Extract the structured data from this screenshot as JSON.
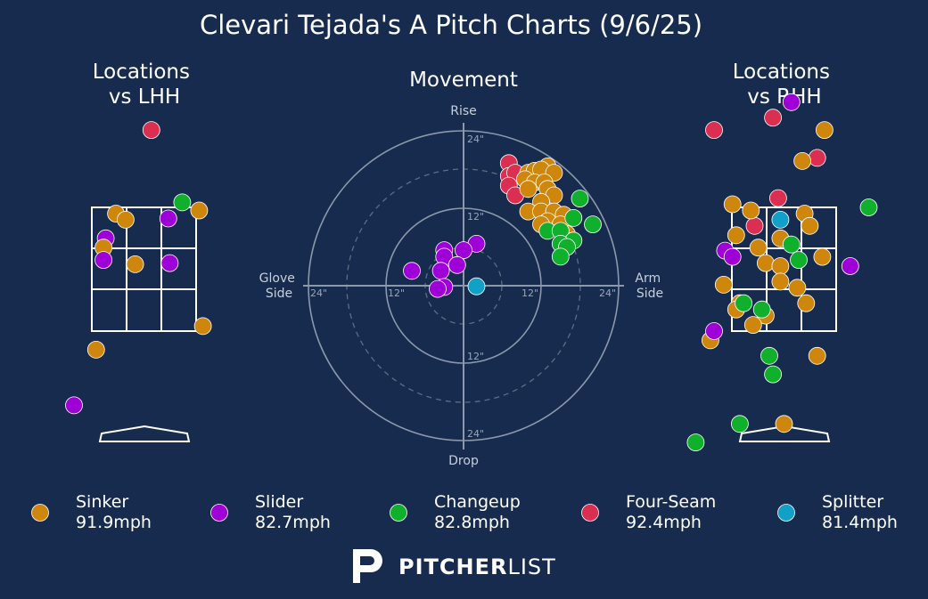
{
  "title": "Clevari Tejada's A Pitch Charts (9/6/25)",
  "brand": {
    "bold": "PITCHER",
    "light": "LIST"
  },
  "colors": {
    "background": "#162b4d",
    "Sinker": "#cf860d",
    "Slider": "#a000d8",
    "Changeup": "#11b02c",
    "Four-Seam": "#db2f51",
    "Splitter": "#11a0c8"
  },
  "legend": [
    {
      "pitch": "Sinker",
      "speed": "91.9mph"
    },
    {
      "pitch": "Slider",
      "speed": "82.7mph"
    },
    {
      "pitch": "Changeup",
      "speed": "82.8mph"
    },
    {
      "pitch": "Four-Seam",
      "speed": "92.4mph"
    },
    {
      "pitch": "Splitter",
      "speed": "81.4mph"
    }
  ],
  "chart_data": [
    {
      "type": "scatter",
      "title": "Locations\nvs LHH",
      "grid": true,
      "points": [
        {
          "pitch": "Four-Seam",
          "x": 0.1,
          "y": 4.75
        },
        {
          "pitch": "Changeup",
          "x": 0.52,
          "y": 3.58
        },
        {
          "pitch": "Sinker",
          "x": 0.75,
          "y": 3.45
        },
        {
          "pitch": "Sinker",
          "x": -0.38,
          "y": 3.4
        },
        {
          "pitch": "Sinker",
          "x": -0.25,
          "y": 3.3
        },
        {
          "pitch": "Slider",
          "x": 0.33,
          "y": 3.32
        },
        {
          "pitch": "Slider",
          "x": -0.52,
          "y": 3.0
        },
        {
          "pitch": "Sinker",
          "x": -0.55,
          "y": 2.85
        },
        {
          "pitch": "Slider",
          "x": -0.55,
          "y": 2.65
        },
        {
          "pitch": "Sinker",
          "x": -0.12,
          "y": 2.58
        },
        {
          "pitch": "Slider",
          "x": 0.35,
          "y": 2.6
        },
        {
          "pitch": "Sinker",
          "x": 0.8,
          "y": 1.58
        },
        {
          "pitch": "Sinker",
          "x": -0.65,
          "y": 1.2
        },
        {
          "pitch": "Slider",
          "x": -0.95,
          "y": 0.3
        }
      ]
    },
    {
      "type": "scatter",
      "title": "Movement",
      "xlabel": "Glove Side / Arm Side",
      "ylabel": "Drop / Rise",
      "rings": [
        "12\"",
        "24\""
      ],
      "points": [
        {
          "pitch": "Four-Seam",
          "x": 7,
          "y": 19
        },
        {
          "pitch": "Four-Seam",
          "x": 7,
          "y": 17
        },
        {
          "pitch": "Four-Seam",
          "x": 8,
          "y": 17.5
        },
        {
          "pitch": "Four-Seam",
          "x": 7,
          "y": 15.5
        },
        {
          "pitch": "Four-Seam",
          "x": 8,
          "y": 14
        },
        {
          "pitch": "Sinker",
          "x": 13,
          "y": 18.5
        },
        {
          "pitch": "Sinker",
          "x": 10,
          "y": 17.5
        },
        {
          "pitch": "Sinker",
          "x": 11,
          "y": 17.8
        },
        {
          "pitch": "Sinker",
          "x": 12,
          "y": 18
        },
        {
          "pitch": "Sinker",
          "x": 14,
          "y": 17.5
        },
        {
          "pitch": "Sinker",
          "x": 9.5,
          "y": 16.5
        },
        {
          "pitch": "Sinker",
          "x": 11,
          "y": 16
        },
        {
          "pitch": "Sinker",
          "x": 12.5,
          "y": 16
        },
        {
          "pitch": "Sinker",
          "x": 10,
          "y": 15
        },
        {
          "pitch": "Sinker",
          "x": 13,
          "y": 15
        },
        {
          "pitch": "Sinker",
          "x": 14,
          "y": 14
        },
        {
          "pitch": "Sinker",
          "x": 12,
          "y": 13
        },
        {
          "pitch": "Sinker",
          "x": 10,
          "y": 11.5
        },
        {
          "pitch": "Sinker",
          "x": 12,
          "y": 11.5
        },
        {
          "pitch": "Sinker",
          "x": 14,
          "y": 11.5
        },
        {
          "pitch": "Sinker",
          "x": 15.5,
          "y": 11
        },
        {
          "pitch": "Sinker",
          "x": 13,
          "y": 10
        },
        {
          "pitch": "Sinker",
          "x": 12,
          "y": 9.5
        },
        {
          "pitch": "Sinker",
          "x": 15,
          "y": 9.5
        },
        {
          "pitch": "Sinker",
          "x": 16,
          "y": 8
        },
        {
          "pitch": "Changeup",
          "x": 18,
          "y": 13.5
        },
        {
          "pitch": "Changeup",
          "x": 17,
          "y": 10.5
        },
        {
          "pitch": "Changeup",
          "x": 20,
          "y": 9.5
        },
        {
          "pitch": "Changeup",
          "x": 13,
          "y": 8.5
        },
        {
          "pitch": "Changeup",
          "x": 15,
          "y": 8.5
        },
        {
          "pitch": "Changeup",
          "x": 17,
          "y": 7
        },
        {
          "pitch": "Changeup",
          "x": 15,
          "y": 6.5
        },
        {
          "pitch": "Changeup",
          "x": 16,
          "y": 6
        },
        {
          "pitch": "Changeup",
          "x": 15,
          "y": 4.5
        },
        {
          "pitch": "Slider",
          "x": 2,
          "y": 6.5
        },
        {
          "pitch": "Slider",
          "x": 0,
          "y": 5.5
        },
        {
          "pitch": "Slider",
          "x": -3,
          "y": 5.5
        },
        {
          "pitch": "Slider",
          "x": -3,
          "y": 4.5
        },
        {
          "pitch": "Slider",
          "x": -1,
          "y": 3.2
        },
        {
          "pitch": "Slider",
          "x": -3.5,
          "y": 2.3
        },
        {
          "pitch": "Slider",
          "x": -8,
          "y": 2.3
        },
        {
          "pitch": "Slider",
          "x": -3,
          "y": -0.2
        },
        {
          "pitch": "Slider",
          "x": -4,
          "y": -0.5
        },
        {
          "pitch": "Splitter",
          "x": 2,
          "y": -0.1
        }
      ]
    },
    {
      "type": "scatter",
      "title": "Locations\nvs RHH",
      "grid": true,
      "points": [
        {
          "pitch": "Slider",
          "x": 0.1,
          "y": 5.2
        },
        {
          "pitch": "Four-Seam",
          "x": -0.15,
          "y": 4.95
        },
        {
          "pitch": "Four-Seam",
          "x": 0.45,
          "y": 4.3
        },
        {
          "pitch": "Four-Seam",
          "x": -0.95,
          "y": 4.75
        },
        {
          "pitch": "Four-Seam",
          "x": -0.08,
          "y": 3.65
        },
        {
          "pitch": "Four-Seam",
          "x": -0.4,
          "y": 3.2
        },
        {
          "pitch": "Sinker",
          "x": 0.55,
          "y": 4.75
        },
        {
          "pitch": "Sinker",
          "x": 0.25,
          "y": 4.25
        },
        {
          "pitch": "Sinker",
          "x": -0.7,
          "y": 3.55
        },
        {
          "pitch": "Sinker",
          "x": -0.45,
          "y": 3.45
        },
        {
          "pitch": "Sinker",
          "x": 0.28,
          "y": 3.4
        },
        {
          "pitch": "Sinker",
          "x": 0.35,
          "y": 3.2
        },
        {
          "pitch": "Sinker",
          "x": -0.65,
          "y": 3.05
        },
        {
          "pitch": "Sinker",
          "x": -0.05,
          "y": 3.0
        },
        {
          "pitch": "Sinker",
          "x": -0.35,
          "y": 2.85
        },
        {
          "pitch": "Sinker",
          "x": 0.52,
          "y": 2.7
        },
        {
          "pitch": "Sinker",
          "x": -0.25,
          "y": 2.6
        },
        {
          "pitch": "Sinker",
          "x": -0.05,
          "y": 2.55
        },
        {
          "pitch": "Sinker",
          "x": -0.05,
          "y": 2.3
        },
        {
          "pitch": "Sinker",
          "x": 0.18,
          "y": 2.2
        },
        {
          "pitch": "Sinker",
          "x": -0.82,
          "y": 2.25
        },
        {
          "pitch": "Sinker",
          "x": 0.3,
          "y": 1.95
        },
        {
          "pitch": "Sinker",
          "x": -0.6,
          "y": 1.95
        },
        {
          "pitch": "Sinker",
          "x": -0.65,
          "y": 1.85
        },
        {
          "pitch": "Sinker",
          "x": -0.25,
          "y": 1.75
        },
        {
          "pitch": "Sinker",
          "x": -0.42,
          "y": 1.6
        },
        {
          "pitch": "Sinker",
          "x": -1.0,
          "y": 1.35
        },
        {
          "pitch": "Sinker",
          "x": 0.45,
          "y": 1.1
        },
        {
          "pitch": "Sinker",
          "x": 0.0,
          "y": 0.0
        },
        {
          "pitch": "Splitter",
          "x": -0.05,
          "y": 3.3
        },
        {
          "pitch": "Changeup",
          "x": 1.15,
          "y": 3.5
        },
        {
          "pitch": "Changeup",
          "x": 0.1,
          "y": 2.9
        },
        {
          "pitch": "Changeup",
          "x": 0.2,
          "y": 2.65
        },
        {
          "pitch": "Changeup",
          "x": -0.55,
          "y": 1.95
        },
        {
          "pitch": "Changeup",
          "x": -0.3,
          "y": 1.85
        },
        {
          "pitch": "Changeup",
          "x": -0.2,
          "y": 1.1
        },
        {
          "pitch": "Changeup",
          "x": -0.15,
          "y": 0.8
        },
        {
          "pitch": "Changeup",
          "x": -0.6,
          "y": 0.0
        },
        {
          "pitch": "Changeup",
          "x": -1.2,
          "y": -0.3
        },
        {
          "pitch": "Slider",
          "x": -0.8,
          "y": 2.8
        },
        {
          "pitch": "Slider",
          "x": -0.7,
          "y": 2.7
        },
        {
          "pitch": "Slider",
          "x": 0.9,
          "y": 2.55
        },
        {
          "pitch": "Slider",
          "x": -0.95,
          "y": 1.5
        }
      ]
    }
  ]
}
